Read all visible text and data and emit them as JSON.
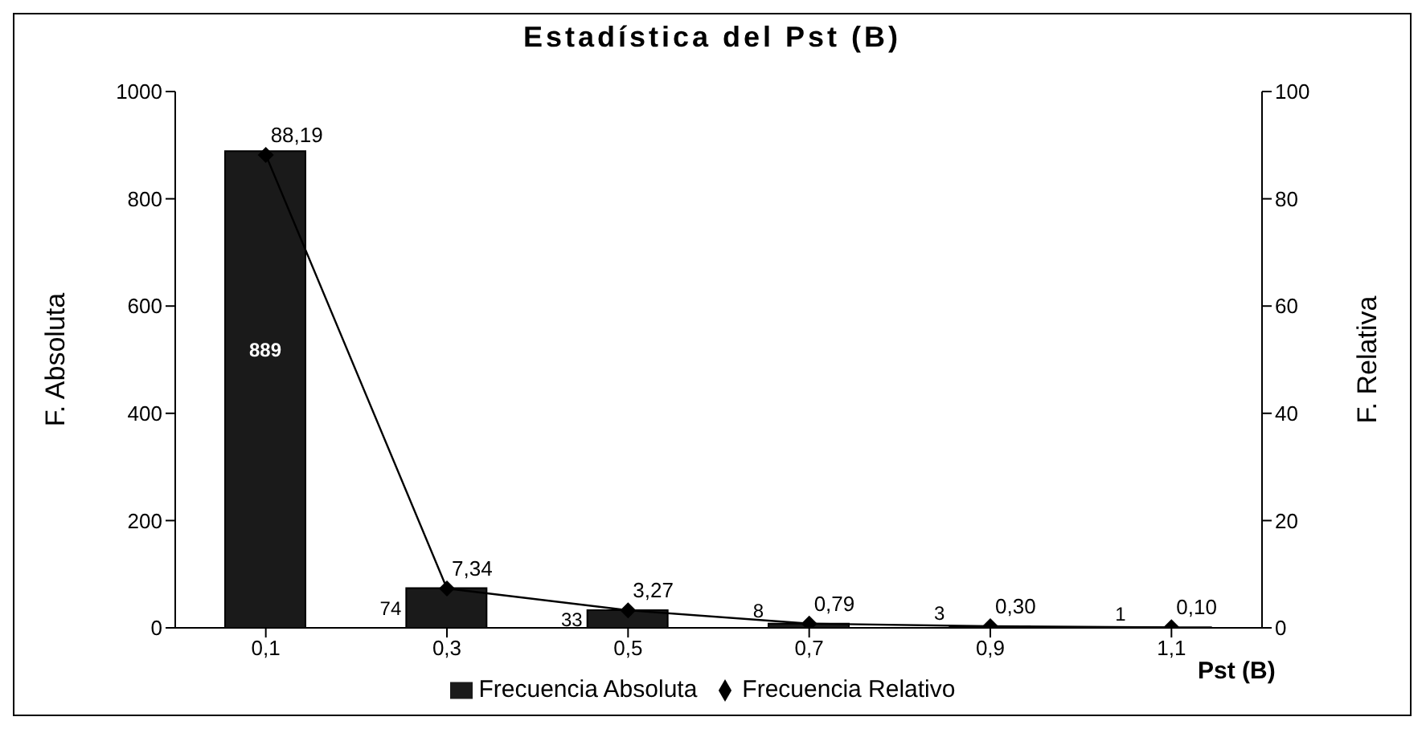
{
  "chart_data": {
    "type": "bar",
    "title": "Estadística del Pst (B)",
    "xlabel": "Pst (B)",
    "ylabel": "F. Absoluta",
    "y2label": "F. Relativa",
    "categories": [
      "0,1",
      "0,3",
      "0,5",
      "0,7",
      "0,9",
      "1,1"
    ],
    "series": [
      {
        "name": "Frecuencia Absoluta",
        "color": "#1a1a1a",
        "values": [
          889,
          74,
          33,
          8,
          3,
          1
        ],
        "value_labels": [
          "889",
          "74",
          "33",
          "8",
          "3",
          "1"
        ]
      },
      {
        "name": "Frecuencia Relativo",
        "type": "line",
        "axis": "y2",
        "color": "#000000",
        "values": [
          88.19,
          7.34,
          3.27,
          0.79,
          0.3,
          0.1
        ],
        "value_labels": [
          "88,19",
          "7,34",
          "3,27",
          "0,79",
          "0,30",
          "0,10"
        ]
      }
    ],
    "ylim": [
      0,
      1000
    ],
    "yticks": [
      0,
      200,
      400,
      600,
      800,
      1000
    ],
    "y2lim": [
      0,
      100
    ],
    "y2ticks": [
      0,
      20,
      40,
      60,
      80,
      100
    ],
    "marker": "diamond",
    "legend": "bottom"
  }
}
